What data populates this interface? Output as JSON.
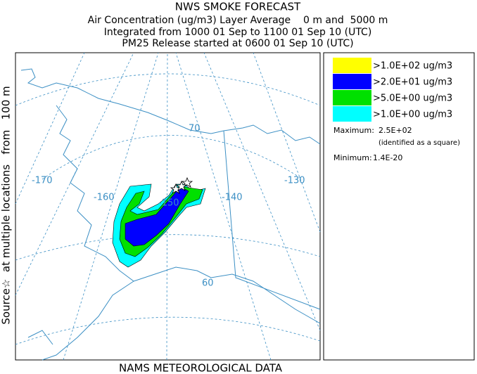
{
  "header": {
    "title": "NWS SMOKE FORECAST",
    "lines": [
      "Air Concentration (ug/m3) Layer Average    0 m and  5000 m",
      "Integrated from 1000 01 Sep to 1100 01 Sep 10 (UTC)",
      "PM25 Release started at 0600 01 Sep 10 (UTC)"
    ]
  },
  "side_label": "Source☆  at multiple locations   from   100 m",
  "footer": "NAMS METEOROLOGICAL DATA",
  "map": {
    "grid_labels": [
      "-170",
      "-160",
      "-150",
      "-140",
      "-130",
      "70",
      "60"
    ]
  },
  "legend": {
    "entries": [
      {
        "label": ">1.0E+02 ug/m3",
        "color": "#ffff00"
      },
      {
        "label": ">2.0E+01 ug/m3",
        "color": "#0000ff"
      },
      {
        "label": ">5.0E+00 ug/m3",
        "color": "#00e000"
      },
      {
        "label": ">1.0E+00 ug/m3",
        "color": "#00ffff"
      }
    ],
    "maximum_label": "Maximum:",
    "maximum": "2.5E+02",
    "maximum_note": "(identified as a square)",
    "minimum_label": "Minimum:",
    "minimum": "1.4E-20"
  }
}
